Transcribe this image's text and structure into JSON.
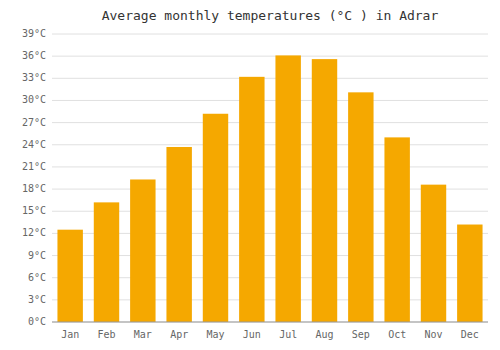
{
  "chart_data": {
    "type": "bar",
    "title": "Average monthly temperatures (°C ) in Adrar",
    "categories": [
      "Jan",
      "Feb",
      "Mar",
      "Apr",
      "May",
      "Jun",
      "Jul",
      "Aug",
      "Sep",
      "Oct",
      "Nov",
      "Dec"
    ],
    "values": [
      12.5,
      16.2,
      19.3,
      23.7,
      28.2,
      33.2,
      36.1,
      35.6,
      31.1,
      25.0,
      18.6,
      13.2
    ],
    "color": "#F5A800",
    "ylim": [
      0,
      39
    ],
    "yticks": [
      {
        "value": 0,
        "label": "0°C"
      },
      {
        "value": 3,
        "label": "3°C"
      },
      {
        "value": 6,
        "label": "6°C"
      },
      {
        "value": 9,
        "label": "9°C"
      },
      {
        "value": 12,
        "label": "12°C"
      },
      {
        "value": 15,
        "label": "15°C"
      },
      {
        "value": 18,
        "label": "18°C"
      },
      {
        "value": 21,
        "label": "21°C"
      },
      {
        "value": 24,
        "label": "24°C"
      },
      {
        "value": 27,
        "label": "27°C"
      },
      {
        "value": 30,
        "label": "30°C"
      },
      {
        "value": 33,
        "label": "33°C"
      },
      {
        "value": 36,
        "label": "36°C"
      },
      {
        "value": 39,
        "label": "39°C"
      }
    ],
    "grid": true
  }
}
